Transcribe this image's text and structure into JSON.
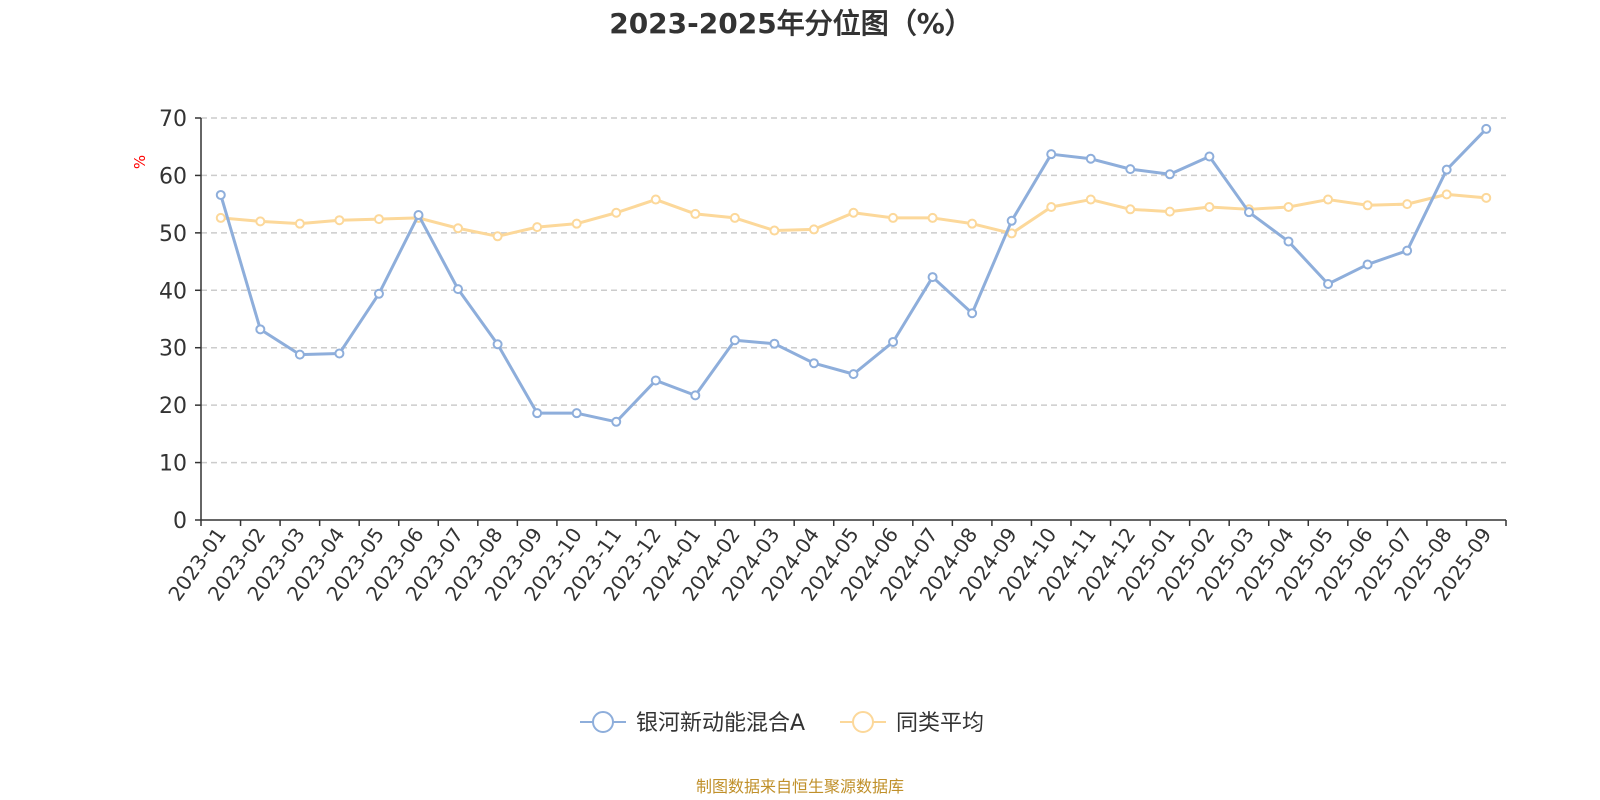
{
  "chart_data": {
    "type": "line",
    "title": "2023-2025年分位图（%）",
    "ylabel": "%",
    "ylim": [
      0,
      70
    ],
    "yticks": [
      0,
      10,
      20,
      30,
      40,
      50,
      60,
      70
    ],
    "grid": true,
    "legend_position": "bottom",
    "categories": [
      "2023-01",
      "2023-02",
      "2023-03",
      "2023-04",
      "2023-05",
      "2023-06",
      "2023-07",
      "2023-08",
      "2023-09",
      "2023-10",
      "2023-11",
      "2023-12",
      "2024-01",
      "2024-02",
      "2024-03",
      "2024-04",
      "2024-05",
      "2024-06",
      "2024-07",
      "2024-08",
      "2024-09",
      "2024-10",
      "2024-11",
      "2024-12",
      "2025-01",
      "2025-02",
      "2025-03",
      "2025-04",
      "2025-05",
      "2025-06",
      "2025-07",
      "2025-08",
      "2025-09"
    ],
    "series": [
      {
        "name": "银河新动能混合A",
        "color": "#8eaedb",
        "values": [
          56.6,
          33.2,
          28.8,
          29.0,
          39.4,
          53.1,
          40.2,
          30.6,
          18.6,
          18.6,
          17.1,
          24.3,
          21.7,
          31.3,
          30.7,
          27.3,
          25.4,
          31.0,
          42.3,
          36.0,
          52.1,
          63.7,
          62.9,
          61.1,
          60.2,
          63.3,
          53.6,
          48.5,
          41.1,
          44.5,
          46.9,
          61.0,
          68.1
        ]
      },
      {
        "name": "同类平均",
        "color": "#fcd89a",
        "values": [
          52.6,
          52.0,
          51.6,
          52.2,
          52.4,
          52.6,
          50.8,
          49.4,
          51.0,
          51.6,
          53.5,
          55.8,
          53.3,
          52.6,
          50.4,
          50.6,
          53.5,
          52.6,
          52.6,
          51.6,
          49.9,
          54.5,
          55.8,
          54.1,
          53.7,
          54.5,
          54.1,
          54.5,
          55.8,
          54.8,
          55.0,
          56.7,
          56.1
        ]
      }
    ],
    "source_note": "制图数据来自恒生聚源数据库",
    "source_color": "#c0902a",
    "unit_color": "#ff0000"
  }
}
